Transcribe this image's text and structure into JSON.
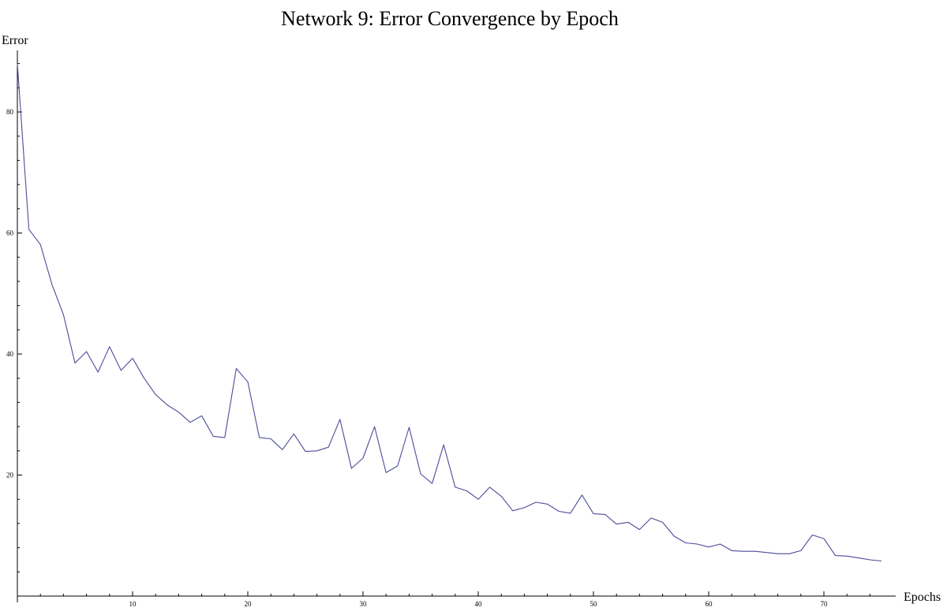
{
  "chart_data": {
    "type": "line",
    "title": "Network 9: Error Convergence by Epoch",
    "xlabel": "Epochs",
    "ylabel": "Error",
    "xlim": [
      0,
      76
    ],
    "ylim": [
      0,
      90
    ],
    "x_major_ticks": [
      10,
      20,
      30,
      40,
      50,
      60,
      70
    ],
    "x_minor_step": 2,
    "y_major_ticks": [
      20,
      40,
      60,
      80
    ],
    "y_minor_step": 4,
    "grid": false,
    "line_color": "#4b4b99",
    "series": [
      {
        "x": [
          0,
          1,
          2,
          3,
          4,
          5,
          6,
          7,
          8,
          9,
          10,
          11,
          12,
          13,
          14,
          15,
          16,
          17,
          18,
          19,
          20,
          21,
          22,
          23,
          24,
          25,
          26,
          27,
          28,
          29,
          30,
          31,
          32,
          33,
          34,
          35,
          36,
          37,
          38,
          39,
          40,
          41,
          42,
          43,
          44,
          45,
          46,
          47,
          48,
          49,
          50,
          51,
          52,
          53,
          54,
          55,
          56,
          57,
          58,
          59,
          60,
          61,
          62,
          63,
          64,
          65,
          66,
          67,
          68,
          69,
          70,
          71,
          72,
          73,
          74,
          75
        ],
        "values": [
          88,
          60.6,
          58.1,
          51.5,
          46.5,
          38.5,
          40.4,
          37,
          41.2,
          37.3,
          39.3,
          36,
          33.3,
          31.6,
          30.4,
          28.7,
          29.8,
          26.4,
          26.2,
          37.6,
          35.4,
          26.2,
          26,
          24.2,
          26.8,
          23.9,
          24,
          24.6,
          29.2,
          21.1,
          22.8,
          28,
          20.4,
          21.5,
          27.9,
          20.2,
          18.6,
          25,
          18,
          17.4,
          16,
          18,
          16.5,
          14.1,
          14.6,
          15.5,
          15.2,
          14,
          13.7,
          16.7,
          13.6,
          13.5,
          11.9,
          12.2,
          11,
          12.9,
          12.2,
          9.9,
          8.8,
          8.6,
          8.1,
          8.6,
          7.5,
          7.4,
          7.4,
          7.2,
          7,
          7,
          7.5,
          10.1,
          9.5,
          6.7,
          6.6,
          6.3,
          6,
          5.8
        ]
      }
    ]
  }
}
